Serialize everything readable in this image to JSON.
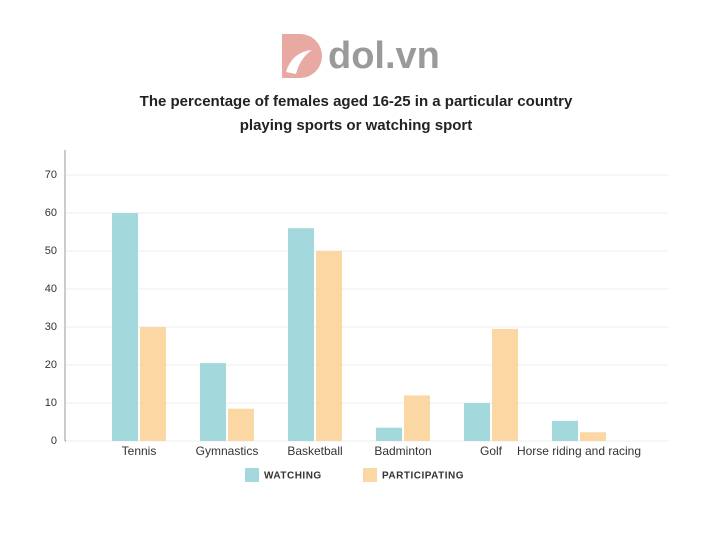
{
  "logo": "dol.vn",
  "chart_data": {
    "type": "bar",
    "title": "The percentage of females aged 16-25 in a particular country playing sports or watching sport",
    "categories": [
      "Tennis",
      "Gymnastics",
      "Basketball",
      "Badminton",
      "Golf",
      "Horse riding and racing"
    ],
    "series": [
      {
        "name": "WATCHING",
        "color": "#a3d9dc",
        "values": [
          60,
          20.5,
          56,
          3.5,
          10,
          5.3
        ]
      },
      {
        "name": "PARTICIPATING",
        "color": "#fbd7a4",
        "values": [
          30,
          8.5,
          50,
          12,
          29.5,
          2.3
        ]
      }
    ],
    "ylim": [
      0,
      70
    ],
    "yticks": [
      0,
      10,
      20,
      30,
      40,
      50,
      60,
      70
    ],
    "grid": true
  }
}
